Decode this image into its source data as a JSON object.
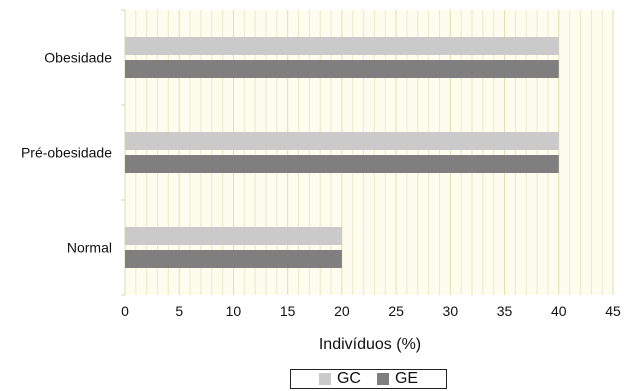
{
  "chart_data": {
    "type": "bar",
    "orientation": "horizontal",
    "categories": [
      "Obesidade",
      "Pré-obesidade",
      "Normal"
    ],
    "series": [
      {
        "name": "GC",
        "values": [
          40,
          40,
          20
        ],
        "color": "#cacaca"
      },
      {
        "name": "GE",
        "values": [
          40,
          40,
          20
        ],
        "color": "#7f7f7f"
      }
    ],
    "xlabel": "Indivíduos (%)",
    "ylabel": "",
    "xlim": [
      0,
      45
    ],
    "xticks": [
      "0",
      "5",
      "10",
      "15",
      "20",
      "25",
      "30",
      "35",
      "40",
      "45"
    ],
    "grid": true,
    "legend_position": "bottom",
    "plot_background": "#fdfcef"
  }
}
